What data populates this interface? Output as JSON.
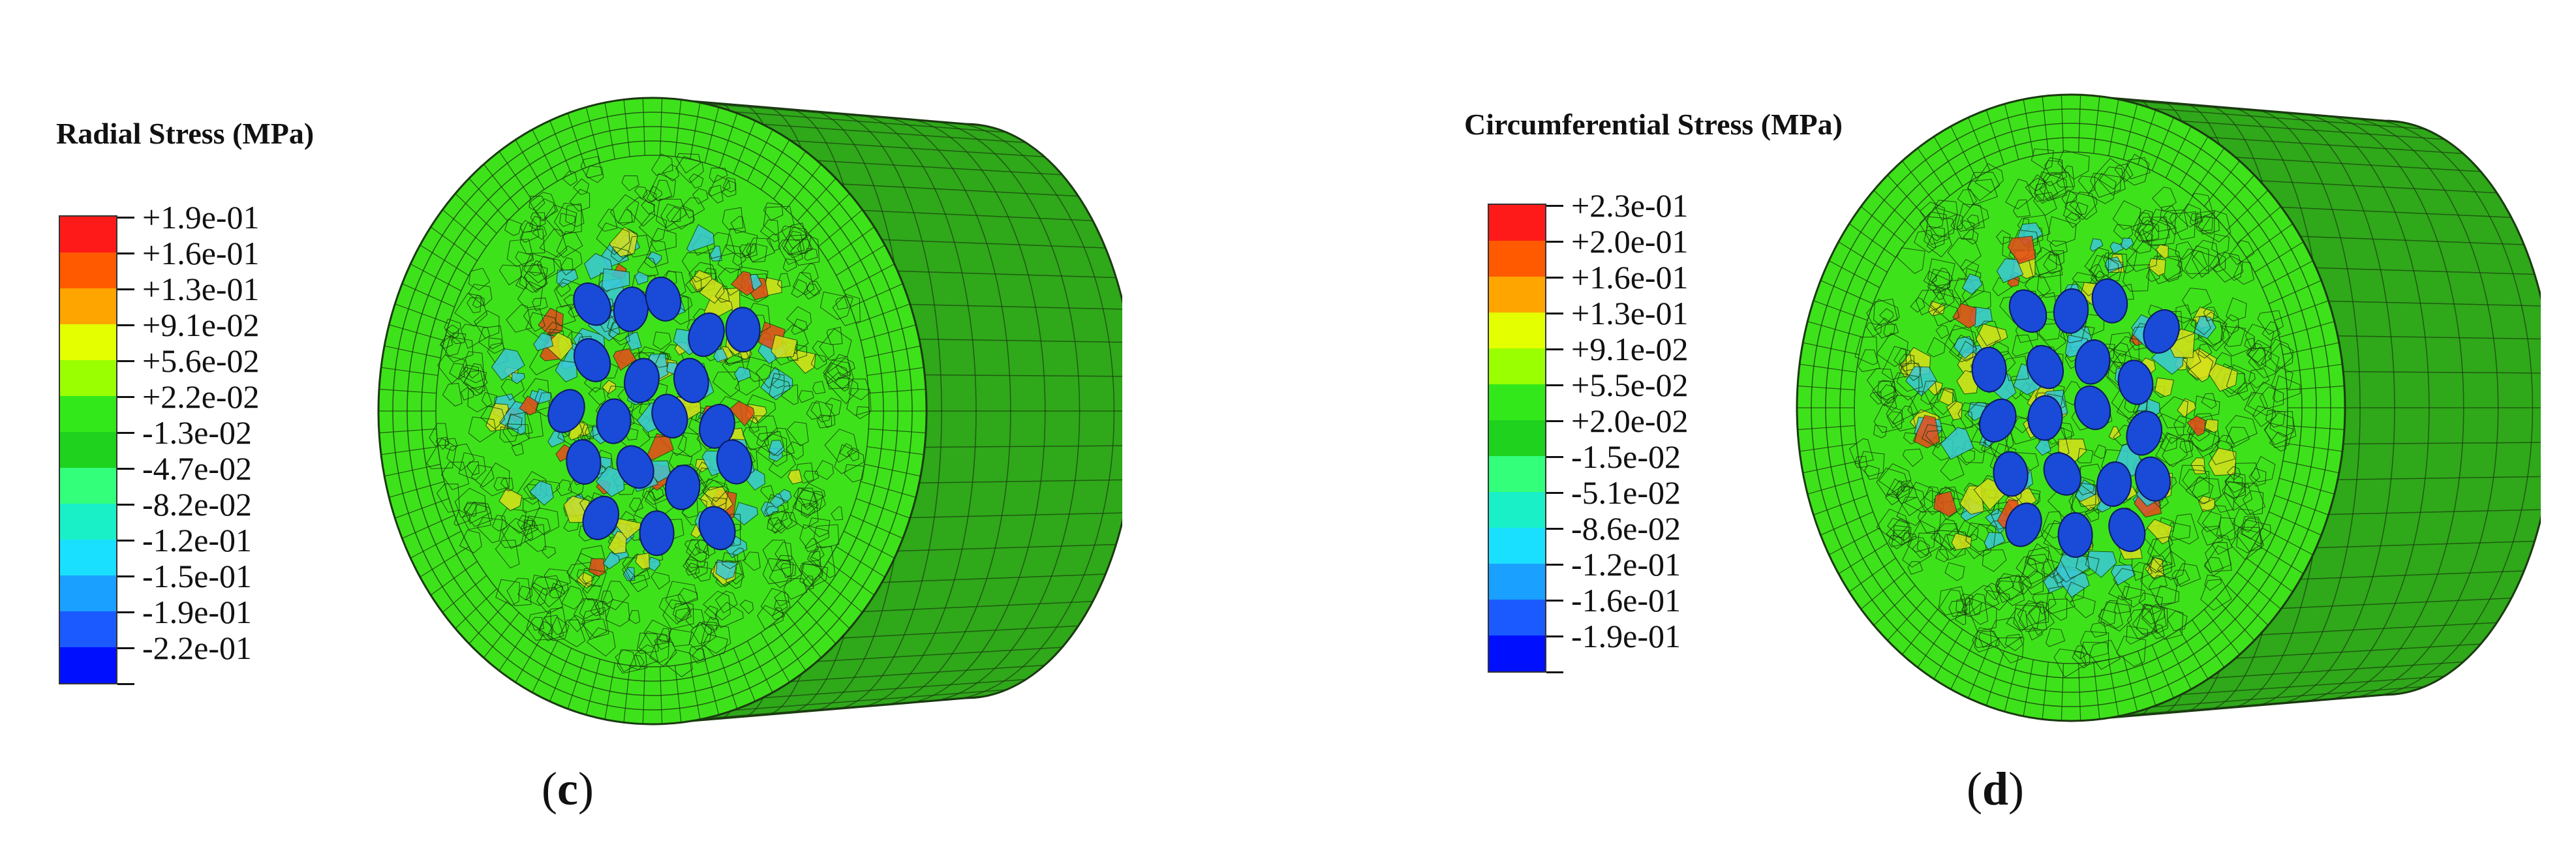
{
  "panels": [
    {
      "id": "c",
      "legend_title": "Radial Stress (MPa)",
      "legend_colors": [
        "#ff1a1a",
        "#ff5a00",
        "#ffa500",
        "#e4ff00",
        "#9aff00",
        "#33e81a",
        "#1ed21e",
        "#33ff7a",
        "#1af0c8",
        "#1ae0ff",
        "#1aa0ff",
        "#1a5aff",
        "#0010ff"
      ],
      "legend_labels": [
        "+1.9e-01",
        "+1.6e-01",
        "+1.3e-01",
        "+9.1e-02",
        "+5.6e-02",
        "+2.2e-02",
        "-1.3e-02",
        "-4.7e-02",
        "-8.2e-02",
        "-1.2e-01",
        "-1.5e-01",
        "-1.9e-01",
        "-2.2e-01"
      ],
      "caption_open": "(",
      "caption_letter": "c",
      "caption_close": ")"
    },
    {
      "id": "d",
      "legend_title": "Circumferential Stress (MPa)",
      "legend_colors": [
        "#ff1a1a",
        "#ff5a00",
        "#ffa500",
        "#e4ff00",
        "#9aff00",
        "#33e81a",
        "#1ed21e",
        "#33ff7a",
        "#1af0c8",
        "#1ae0ff",
        "#1aa0ff",
        "#1a5aff",
        "#0010ff"
      ],
      "legend_labels": [
        "+2.3e-01",
        "+2.0e-01",
        "+1.6e-01",
        "+1.3e-01",
        "+9.1e-02",
        "+5.5e-02",
        "+2.0e-02",
        "-1.5e-02",
        "-5.1e-02",
        "-8.6e-02",
        "-1.2e-01",
        "-1.6e-01",
        "-1.9e-01"
      ],
      "caption_open": "(",
      "caption_letter": "d",
      "caption_close": ")"
    }
  ],
  "colors": {
    "face_green": "#3ee21a",
    "side_green": "#2fa81a",
    "mesh_line": "#1a3a10",
    "inclusion_blue": "#1a4ad8",
    "stress_red": "#e84a1a",
    "stress_yellow": "#d8e01a",
    "stress_cyan": "#3ac8d8"
  }
}
